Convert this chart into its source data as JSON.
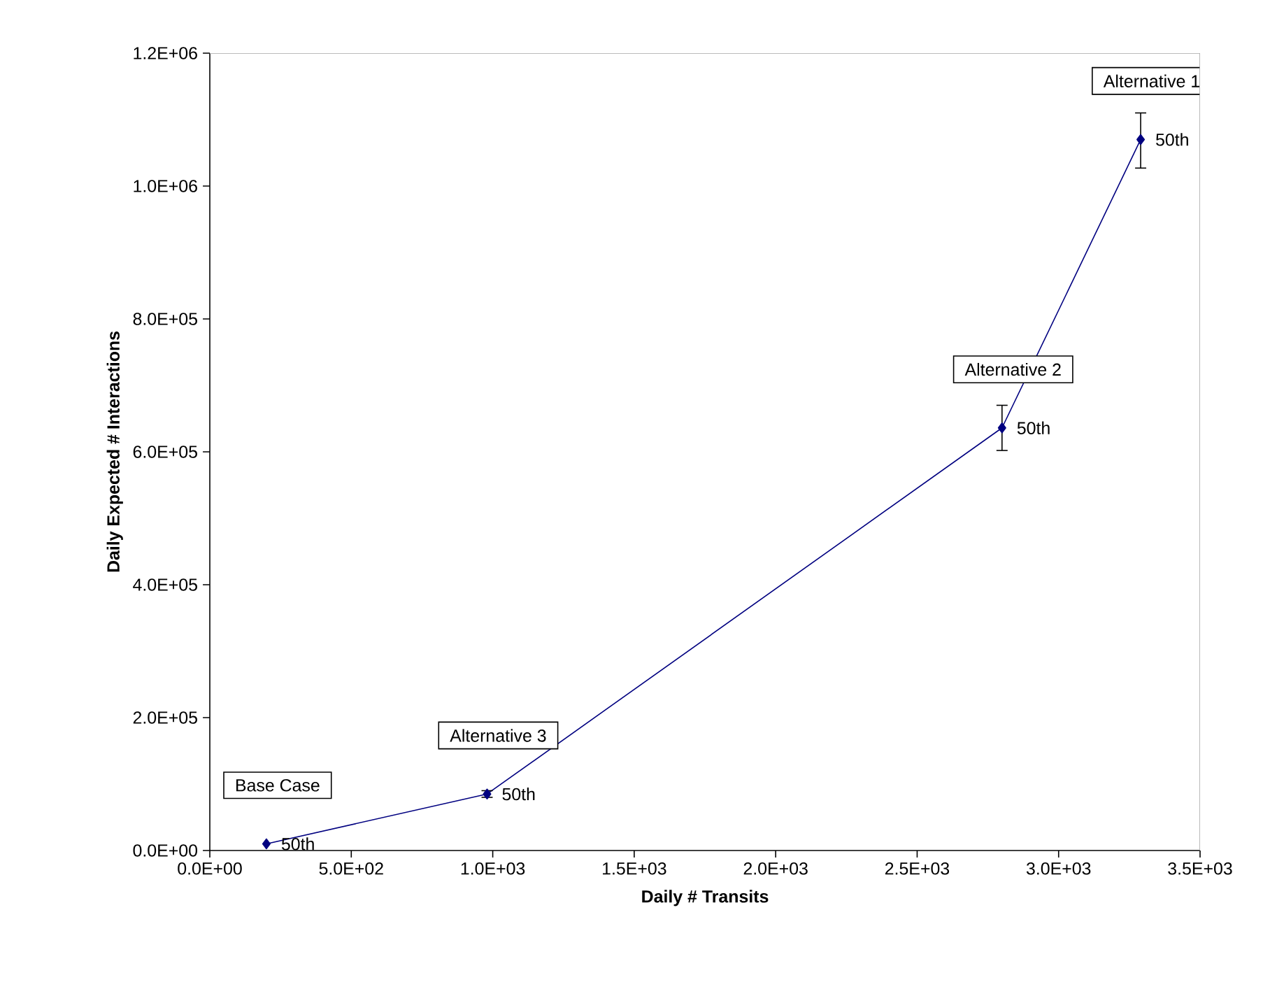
{
  "chart_data": {
    "type": "line",
    "xlabel": "Daily # Transits",
    "ylabel": "Daily Expected # Interactions",
    "x": [
      200,
      980,
      2800,
      3290
    ],
    "series": [
      {
        "color": "#000080",
        "values": [
          10000,
          85000,
          636000,
          1070000
        ],
        "errors": [
          null,
          [
            80000,
            90000
          ],
          [
            602000,
            670000
          ],
          [
            1027000,
            1110000
          ]
        ]
      }
    ],
    "marker": "diamond",
    "line_style": "solid",
    "grid": false,
    "annotations": [
      "Base Case",
      "Alternative 3",
      "Alternative 2",
      "Alternative 1",
      {
        "text": "50th",
        "x": 200,
        "y": 10000
      },
      {
        "text": "50th",
        "x": 980,
        "y": 85000
      },
      {
        "text": "50th",
        "x": 2800,
        "y": 636000
      },
      {
        "text": "50th",
        "x": 3290,
        "y": 1070000
      }
    ],
    "xlim": [
      0,
      3500
    ],
    "ylim": [
      0,
      1200000
    ],
    "xticks": [
      {
        "value": 0,
        "label": "0.0E+00"
      },
      {
        "value": 500,
        "label": "5.0E+02"
      },
      {
        "value": 1000,
        "label": "1.0E+03"
      },
      {
        "value": 1500,
        "label": "1.5E+03"
      },
      {
        "value": 2000,
        "label": "2.0E+03"
      },
      {
        "value": 2500,
        "label": "2.5E+03"
      },
      {
        "value": 3000,
        "label": "3.0E+03"
      },
      {
        "value": 3500,
        "label": "3.5E+03"
      }
    ],
    "yticks": [
      {
        "value": 0,
        "label": "0.0E+00"
      },
      {
        "value": 200000,
        "label": "2.0E+05"
      },
      {
        "value": 400000,
        "label": "4.0E+05"
      },
      {
        "value": 600000,
        "label": "6.0E+05"
      },
      {
        "value": 800000,
        "label": "8.0E+05"
      },
      {
        "value": 1000000,
        "label": "1.0E+06"
      },
      {
        "value": 1200000,
        "label": "1.2E+06"
      }
    ]
  }
}
